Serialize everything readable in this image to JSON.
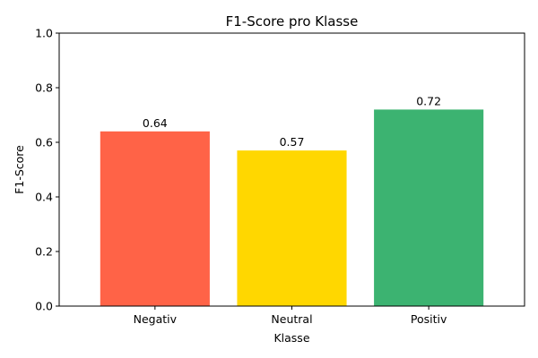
{
  "chart_data": {
    "type": "bar",
    "title": "F1-Score pro Klasse",
    "xlabel": "Klasse",
    "ylabel": "F1-Score",
    "categories": [
      "Negativ",
      "Neutral",
      "Positiv"
    ],
    "values": [
      0.64,
      0.57,
      0.72
    ],
    "value_labels": [
      "0.64",
      "0.57",
      "0.72"
    ],
    "colors": [
      "#ff6347",
      "#ffd700",
      "#3cb371"
    ],
    "ylim": [
      0,
      1.0
    ],
    "yticks": [
      0.0,
      0.2,
      0.4,
      0.6,
      0.8,
      1.0
    ],
    "ytick_labels": [
      "0.0",
      "0.2",
      "0.4",
      "0.6",
      "0.8",
      "1.0"
    ],
    "grid": false,
    "legend": "none"
  }
}
